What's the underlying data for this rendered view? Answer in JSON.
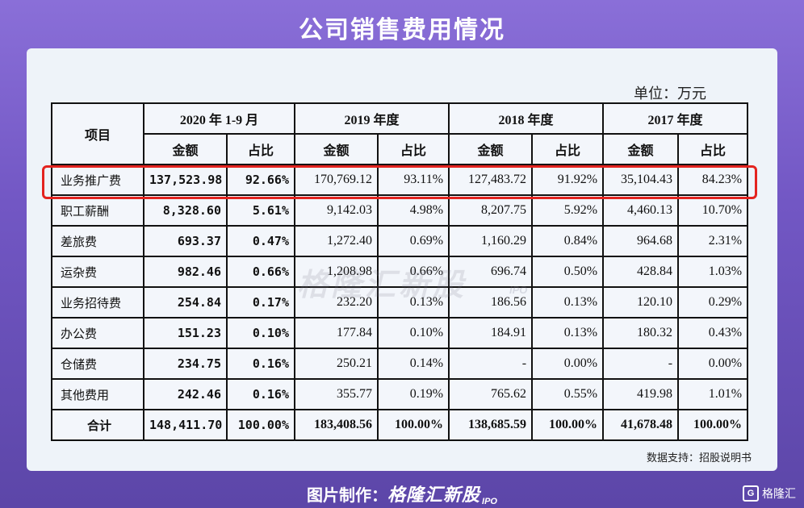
{
  "title": "公司销售费用情况",
  "unit_label": "单位：万元",
  "table": {
    "col_item": "项目",
    "periods": [
      "2020 年 1-9 月",
      "2019 年度",
      "2018 年度",
      "2017 年度"
    ],
    "sub_amount": "金额",
    "sub_share": "占比",
    "rows": [
      {
        "name": "业务推广费",
        "v": [
          "137,523.98",
          "92.66%",
          "170,769.12",
          "93.11%",
          "127,483.72",
          "91.92%",
          "35,104.43",
          "84.23%"
        ]
      },
      {
        "name": "职工薪酬",
        "v": [
          "8,328.60",
          "5.61%",
          "9,142.03",
          "4.98%",
          "8,207.75",
          "5.92%",
          "4,460.13",
          "10.70%"
        ]
      },
      {
        "name": "差旅费",
        "v": [
          "693.37",
          "0.47%",
          "1,272.40",
          "0.69%",
          "1,160.29",
          "0.84%",
          "964.68",
          "2.31%"
        ]
      },
      {
        "name": "运杂费",
        "v": [
          "982.46",
          "0.66%",
          "1,208.98",
          "0.66%",
          "696.74",
          "0.50%",
          "428.84",
          "1.03%"
        ]
      },
      {
        "name": "业务招待费",
        "v": [
          "254.84",
          "0.17%",
          "232.20",
          "0.13%",
          "186.56",
          "0.13%",
          "120.10",
          "0.29%"
        ]
      },
      {
        "name": "办公费",
        "v": [
          "151.23",
          "0.10%",
          "177.84",
          "0.10%",
          "184.91",
          "0.13%",
          "180.32",
          "0.43%"
        ]
      },
      {
        "name": "仓储费",
        "v": [
          "234.75",
          "0.16%",
          "250.21",
          "0.14%",
          "-",
          "0.00%",
          "-",
          "0.00%"
        ]
      },
      {
        "name": "其他费用",
        "v": [
          "242.46",
          "0.16%",
          "355.77",
          "0.19%",
          "765.62",
          "0.55%",
          "419.98",
          "1.01%"
        ]
      },
      {
        "name": "合计",
        "v": [
          "148,411.70",
          "100.00%",
          "183,408.56",
          "100.00%",
          "138,685.59",
          "100.00%",
          "41,678.48",
          "100.00%"
        ]
      }
    ]
  },
  "watermark": {
    "text": "格隆汇新股",
    "sub": "IPO"
  },
  "source": "数据支持：招股说明书",
  "footer": {
    "label": "图片制作：",
    "brand": "格隆汇新股",
    "ipo": "IPO"
  },
  "corner": {
    "logo": "G",
    "text": "格隆汇"
  },
  "colors": {
    "highlight": "#e3231f",
    "background": "#7257c4",
    "card": "#eef3f9"
  }
}
